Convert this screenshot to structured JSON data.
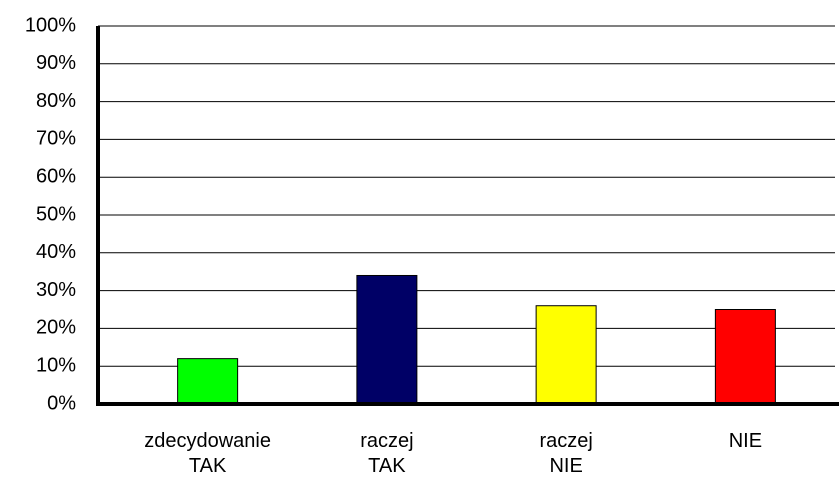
{
  "chart_data": {
    "type": "bar",
    "categories": [
      "zdecydowanie TAK",
      "raczej TAK",
      "raczej NIE",
      "NIE"
    ],
    "values": [
      12,
      34,
      26,
      25
    ],
    "colors": [
      "#00ff00",
      "#000066",
      "#ffff00",
      "#ff0000"
    ],
    "ylim": [
      0,
      100
    ],
    "yticks": [
      {
        "value": 0,
        "label": "0%"
      },
      {
        "value": 10,
        "label": "10%"
      },
      {
        "value": 20,
        "label": "20%"
      },
      {
        "value": 30,
        "label": "30%"
      },
      {
        "value": 40,
        "label": "40%"
      },
      {
        "value": 50,
        "label": "50%"
      },
      {
        "value": 60,
        "label": "60%"
      },
      {
        "value": 70,
        "label": "70%"
      },
      {
        "value": 80,
        "label": "80%"
      },
      {
        "value": 90,
        "label": "90%"
      },
      {
        "value": 100,
        "label": "100%"
      }
    ],
    "grid": true
  }
}
